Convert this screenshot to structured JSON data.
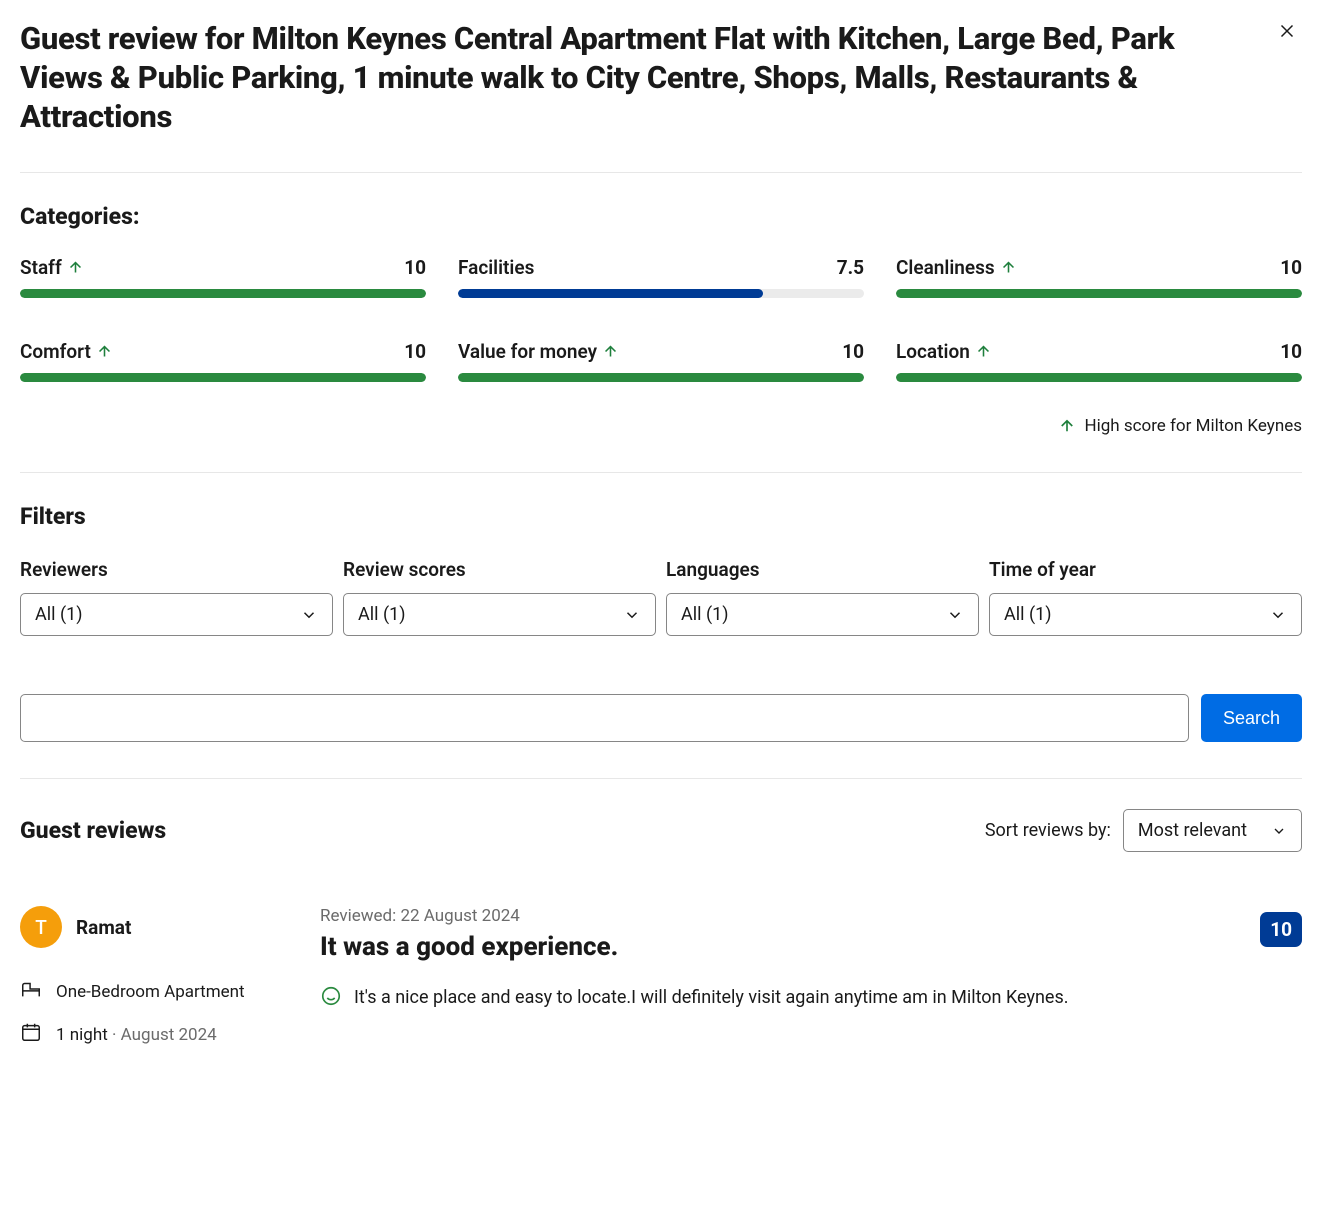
{
  "colors": {
    "bar_green": "#2a8a3f",
    "bar_blue": "#003b95",
    "bar_track": "#ebebeb",
    "primary_button": "#006ce4",
    "score_badge": "#003b95",
    "avatar_bg": "#f59e0b",
    "divider": "#e7e7e7"
  },
  "header": {
    "title": "Guest review for Milton Keynes Central Apartment Flat with Kitchen, Large Bed, Park Views & Public Parking, 1 minute walk to City Centre, Shops, Malls, Restaurants & Attractions"
  },
  "categories": {
    "heading": "Categories:",
    "items": [
      {
        "label": "Staff",
        "score": "10",
        "pct": 100,
        "color": "#2a8a3f",
        "arrow": true
      },
      {
        "label": "Facilities",
        "score": "7.5",
        "pct": 75,
        "color": "#003b95",
        "arrow": false
      },
      {
        "label": "Cleanliness",
        "score": "10",
        "pct": 100,
        "color": "#2a8a3f",
        "arrow": true
      },
      {
        "label": "Comfort",
        "score": "10",
        "pct": 100,
        "color": "#2a8a3f",
        "arrow": true
      },
      {
        "label": "Value for money",
        "score": "10",
        "pct": 100,
        "color": "#2a8a3f",
        "arrow": true
      },
      {
        "label": "Location",
        "score": "10",
        "pct": 100,
        "color": "#2a8a3f",
        "arrow": true
      }
    ],
    "highscore_note": "High score for Milton Keynes"
  },
  "filters": {
    "heading": "Filters",
    "groups": [
      {
        "label": "Reviewers",
        "value": "All (1)"
      },
      {
        "label": "Review scores",
        "value": "All (1)"
      },
      {
        "label": "Languages",
        "value": "All (1)"
      },
      {
        "label": "Time of year",
        "value": "All (1)"
      }
    ],
    "search_button": "Search",
    "search_value": ""
  },
  "reviews": {
    "heading": "Guest reviews",
    "sort_label": "Sort reviews by:",
    "sort_value": "Most relevant",
    "items": [
      {
        "avatar_letter": "T",
        "name": "Ramat",
        "room": "One-Bedroom Apartment",
        "stay_nights": "1 night",
        "stay_date": "August 2024",
        "reviewed_on": "Reviewed: 22 August 2024",
        "title": "It was a good experience.",
        "score": "10",
        "text": "It's a nice place and easy to locate.I will definitely visit again anytime am in Milton Keynes."
      }
    ]
  }
}
